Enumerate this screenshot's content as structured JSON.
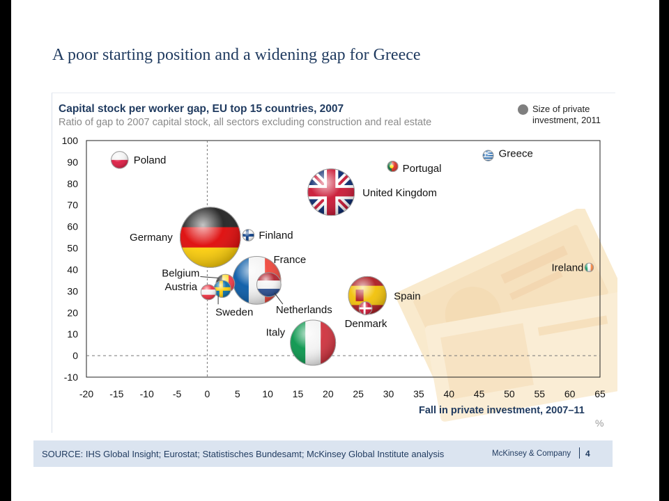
{
  "slide": {
    "title": "A poor starting position and a widening gap for Greece"
  },
  "legend": {
    "size_label": "Size of private investment, 2011",
    "dot_color": "#7f7f7f"
  },
  "footer": {
    "source": "SOURCE: IHS Global Insight; Eurostat; Statistisches Bundesamt; McKinsey Global Institute analysis",
    "brand": "McKinsey & Company",
    "page": "4"
  },
  "chart_data": {
    "type": "scatter",
    "title": "Capital stock per worker gap, EU top 15 countries, 2007",
    "subtitle": "Ratio of gap to 2007 capital stock, all sectors excluding construction and real estate",
    "xlabel": "Fall in private investment, 2007–11",
    "unit": "%",
    "xlim": [
      -20,
      65
    ],
    "ylim": [
      -10,
      100
    ],
    "xticks": [
      -20,
      -15,
      -10,
      -5,
      0,
      5,
      10,
      15,
      20,
      25,
      30,
      35,
      40,
      45,
      50,
      55,
      60,
      65
    ],
    "yticks": [
      -10,
      0,
      10,
      20,
      30,
      40,
      50,
      60,
      70,
      80,
      90,
      100
    ],
    "grid": false,
    "reference_lines": {
      "x": 0,
      "y": 0
    },
    "points": [
      {
        "name": "Poland",
        "x": -14.5,
        "y": 91,
        "size": 2.5,
        "flag": "poland"
      },
      {
        "name": "Portugal",
        "x": 30.7,
        "y": 88,
        "size": 1,
        "flag": "portugal"
      },
      {
        "name": "Greece",
        "x": 46.5,
        "y": 93,
        "size": 1,
        "flag": "greece"
      },
      {
        "name": "United Kingdom",
        "x": 20.5,
        "y": 76,
        "size": 18,
        "flag": "uk"
      },
      {
        "name": "Germany",
        "x": 0.5,
        "y": 55,
        "size": 30,
        "flag": "germany"
      },
      {
        "name": "Finland",
        "x": 6.8,
        "y": 56,
        "size": 1.2,
        "flag": "finland"
      },
      {
        "name": "France",
        "x": 8.2,
        "y": 35,
        "size": 19,
        "flag": "france"
      },
      {
        "name": "Netherlands",
        "x": 10.2,
        "y": 33,
        "size": 5,
        "flag": "netherlands"
      },
      {
        "name": "Belgium",
        "x": 3,
        "y": 33.5,
        "size": 3,
        "flag": "belgium"
      },
      {
        "name": "Sweden",
        "x": 2.5,
        "y": 31,
        "size": 2.5,
        "flag": "sweden"
      },
      {
        "name": "Austria",
        "x": 0.2,
        "y": 29.5,
        "size": 2,
        "flag": "austria"
      },
      {
        "name": "Spain",
        "x": 26.5,
        "y": 28,
        "size": 12,
        "flag": "spain"
      },
      {
        "name": "Denmark",
        "x": 26.2,
        "y": 22,
        "size": 1.5,
        "flag": "denmark"
      },
      {
        "name": "Italy",
        "x": 17.5,
        "y": 6,
        "size": 17,
        "flag": "italy"
      },
      {
        "name": "Ireland",
        "x": 63.2,
        "y": 41,
        "size": 0.7,
        "flag": "ireland"
      }
    ]
  }
}
